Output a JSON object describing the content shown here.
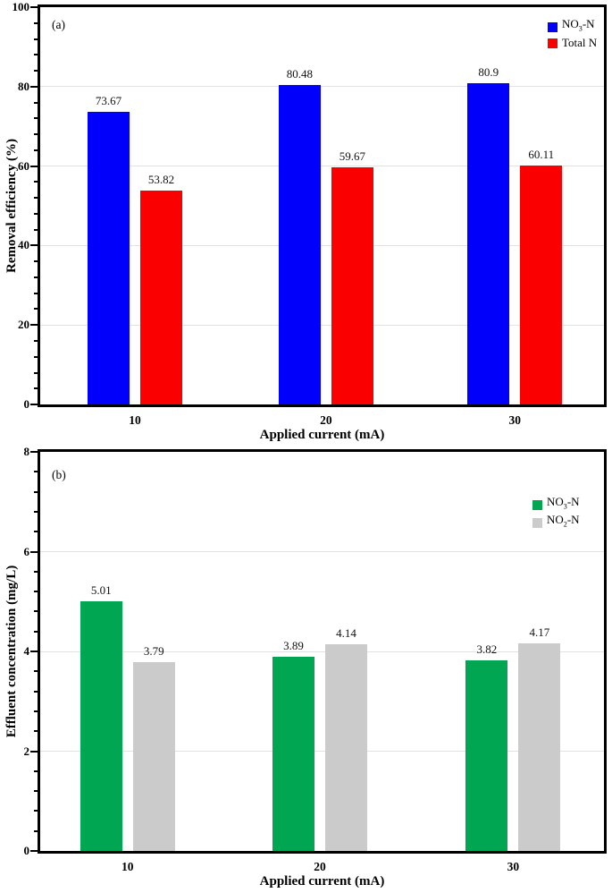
{
  "chart_data": [
    {
      "type": "bar",
      "panel_label": "(a)",
      "categories": [
        "10",
        "20",
        "30"
      ],
      "series": [
        {
          "label_parts": [
            {
              "text": "NO"
            },
            {
              "sub": "3"
            },
            {
              "text": "-N"
            }
          ],
          "color": "#0000fb",
          "values": [
            73.67,
            80.48,
            80.9
          ],
          "value_labels": [
            "73.67",
            "80.48",
            "80.9"
          ]
        },
        {
          "label_parts": [
            {
              "text": "Total N"
            }
          ],
          "color": "#fb0000",
          "values": [
            53.82,
            59.67,
            60.11
          ],
          "value_labels": [
            "53.82",
            "59.67",
            "60.11"
          ]
        }
      ],
      "xlabel": "Applied current (mA)",
      "ylabel": "Removal efficiency (%)",
      "ylim": [
        0,
        100
      ],
      "ytick_step": 20,
      "yminor_divisions": 5,
      "grid": true,
      "legend_position": "top-right"
    },
    {
      "type": "bar",
      "panel_label": "(b)",
      "categories": [
        "10",
        "20",
        "30"
      ],
      "series": [
        {
          "label_parts": [
            {
              "text": "NO"
            },
            {
              "sub": "3"
            },
            {
              "text": "-N"
            }
          ],
          "color": "#00a651",
          "values": [
            5.01,
            3.89,
            3.82
          ],
          "value_labels": [
            "5.01",
            "3.89",
            "3.82"
          ]
        },
        {
          "label_parts": [
            {
              "text": "NO"
            },
            {
              "sub": "2"
            },
            {
              "text": "-N"
            }
          ],
          "color": "#cbcbcb",
          "values": [
            3.79,
            4.14,
            4.17
          ],
          "value_labels": [
            "3.79",
            "4.14",
            "4.17"
          ]
        }
      ],
      "xlabel": "Applied current (mA)",
      "ylabel": "Effluent concentration (mg/L)",
      "ylim": [
        0,
        8
      ],
      "ytick_step": 2,
      "yminor_divisions": 5,
      "grid": true,
      "legend_position": "top-right"
    }
  ]
}
